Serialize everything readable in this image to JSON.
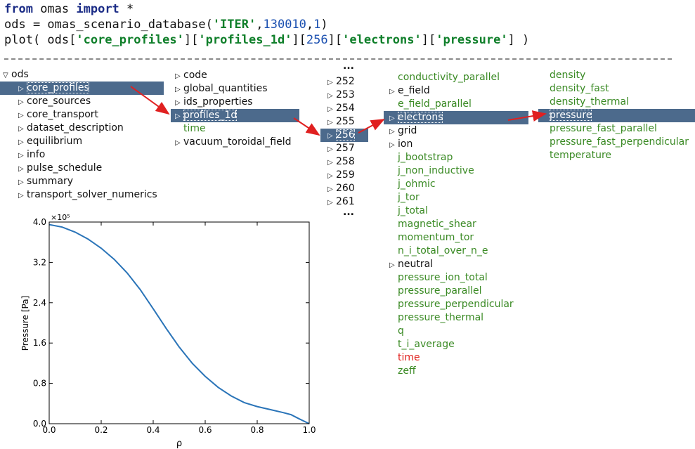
{
  "code": {
    "line1": {
      "kw1": "from",
      "mod": " omas ",
      "kw2": "import",
      "rest": " *"
    },
    "line2": {
      "pre": "ods = omas_scenario_database(",
      "s1": "'ITER'",
      "c1": ",",
      "n1": "130010",
      "c2": ",",
      "n2": "1",
      "post": ")"
    },
    "line3": {
      "pre": "plot( ods[",
      "s1": "'core_profiles'",
      "mid1": "][",
      "s2": "'profiles_1d'",
      "mid2": "][",
      "n1": "256",
      "mid3": "][",
      "s3": "'electrons'",
      "mid4": "][",
      "s4": "'pressure'",
      "post": "] )"
    }
  },
  "tree": {
    "root": "ods",
    "col1": [
      "core_profiles",
      "core_sources",
      "core_transport",
      "dataset_description",
      "equilibrium",
      "info",
      "pulse_schedule",
      "summary",
      "transport_solver_numerics"
    ],
    "col2": [
      "code",
      "global_quantities",
      "ids_properties",
      "profiles_1d",
      "time",
      "vacuum_toroidal_field"
    ],
    "col3": [
      "252",
      "253",
      "254",
      "255",
      "256",
      "257",
      "258",
      "259",
      "260",
      "261"
    ],
    "col3_more": "...",
    "col4": [
      "conductivity_parallel",
      "e_field",
      "e_field_parallel",
      "electrons",
      "grid",
      "ion",
      "j_bootstrap",
      "j_non_inductive",
      "j_ohmic",
      "j_tor",
      "j_total",
      "magnetic_shear",
      "momentum_tor",
      "n_i_total_over_n_e",
      "neutral",
      "pressure_ion_total",
      "pressure_parallel",
      "pressure_perpendicular",
      "pressure_thermal",
      "q",
      "t_i_average",
      "time",
      "zeff"
    ],
    "col5": [
      "density",
      "density_fast",
      "density_thermal",
      "pressure",
      "pressure_fast_parallel",
      "pressure_fast_perpendicular",
      "temperature"
    ]
  },
  "colors": {
    "selected": "#4c6a8c",
    "leaf": "#3a8a24",
    "time_col4": "#e0201c",
    "arrow": "#e02020",
    "line": "#2a74b8"
  },
  "chart_data": {
    "type": "line",
    "xlabel": "ρ",
    "ylabel": "Pressure [Pa]",
    "y_multiplier": "×10⁵",
    "xlim": [
      0.0,
      1.0
    ],
    "ylim": [
      0.0,
      4.0
    ],
    "xticks": [
      "0.0",
      "0.2",
      "0.4",
      "0.6",
      "0.8",
      "1.0"
    ],
    "yticks": [
      "0.0",
      "0.8",
      "1.6",
      "2.4",
      "3.2",
      "4.0"
    ],
    "series": [
      {
        "x": [
          0.0,
          0.05,
          0.1,
          0.15,
          0.2,
          0.25,
          0.3,
          0.35,
          0.4,
          0.45,
          0.5,
          0.55,
          0.6,
          0.65,
          0.7,
          0.75,
          0.8,
          0.85,
          0.9,
          0.93,
          0.96,
          1.0
        ],
        "y": [
          3.95,
          3.9,
          3.8,
          3.66,
          3.48,
          3.26,
          2.99,
          2.66,
          2.28,
          1.89,
          1.52,
          1.2,
          0.94,
          0.72,
          0.55,
          0.42,
          0.34,
          0.28,
          0.22,
          0.18,
          0.1,
          0.0
        ]
      }
    ]
  }
}
